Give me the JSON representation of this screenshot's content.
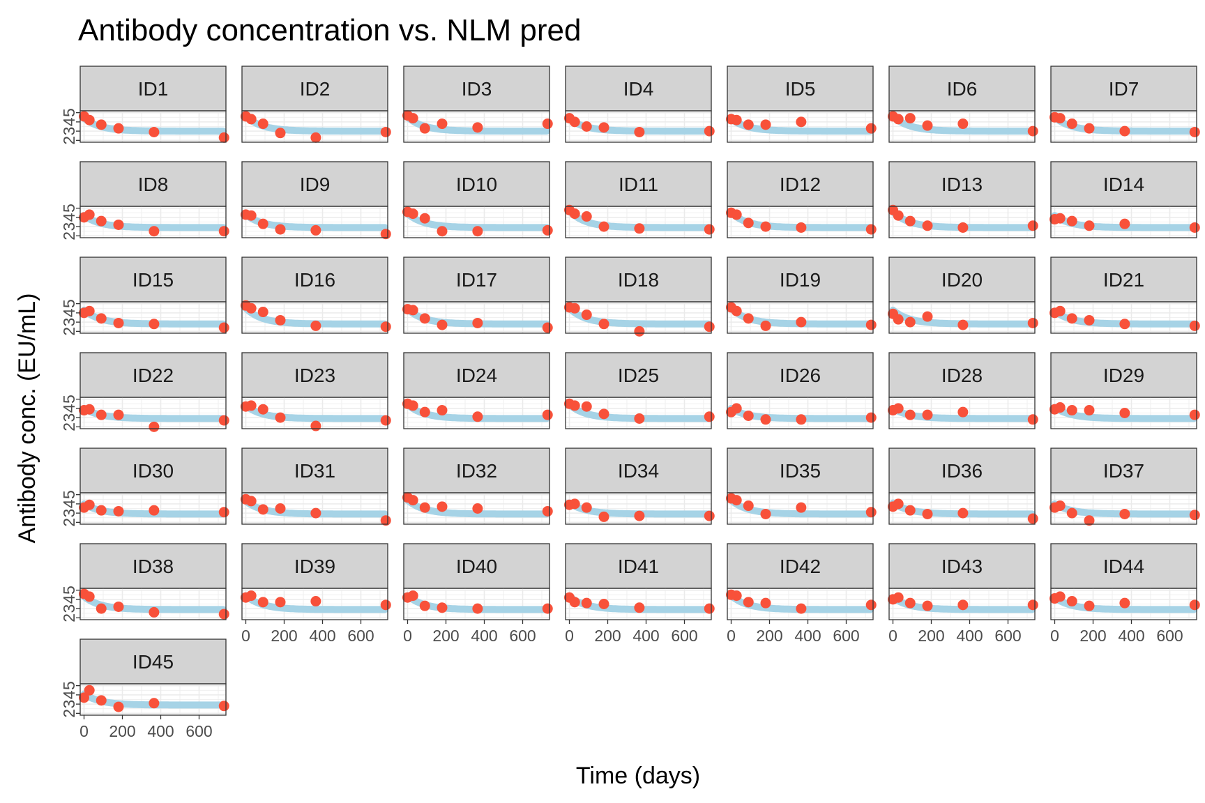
{
  "chart_data": {
    "type": "scatter",
    "title": "Antibody concentration vs. NLM pred",
    "xlabel": "Time (days)",
    "ylabel": "Antibody conc. (EU/mL)",
    "xlim": [
      -20,
      740
    ],
    "ylim": [
      1.8,
      5.2
    ],
    "xticks": [
      0,
      200,
      400,
      600
    ],
    "yticks": [
      2,
      3,
      4,
      5
    ],
    "grid": true,
    "legend": "none",
    "colors": {
      "observed": "#f8513a",
      "predicted": "#a6d3e6",
      "strip": "#d3d3d3"
    },
    "times": [
      0,
      28,
      90,
      180,
      365,
      730
    ],
    "panels": [
      {
        "id": "ID1",
        "obs": [
          4.6,
          4.2,
          3.7,
          3.3,
          2.9,
          2.3
        ],
        "pred": [
          4.4,
          3.0
        ]
      },
      {
        "id": "ID2",
        "obs": [
          4.6,
          4.3,
          3.8,
          2.8,
          2.3,
          2.9
        ],
        "pred": [
          4.6,
          3.0
        ]
      },
      {
        "id": "ID3",
        "obs": [
          4.7,
          4.4,
          3.3,
          3.8,
          3.4,
          3.8
        ],
        "pred": [
          4.5,
          3.0
        ]
      },
      {
        "id": "ID4",
        "obs": [
          4.4,
          4.0,
          3.5,
          3.4,
          2.9,
          3.0
        ],
        "pred": [
          4.3,
          3.0
        ]
      },
      {
        "id": "ID5",
        "obs": [
          4.3,
          4.2,
          3.7,
          3.7,
          4.0,
          3.3
        ],
        "pred": [
          4.3,
          3.0
        ]
      },
      {
        "id": "ID6",
        "obs": [
          4.6,
          4.3,
          4.4,
          3.6,
          3.8,
          3.0
        ],
        "pred": [
          4.6,
          3.0
        ]
      },
      {
        "id": "ID7",
        "obs": [
          4.5,
          4.4,
          3.8,
          3.3,
          3.0,
          2.9
        ],
        "pred": [
          4.5,
          3.0
        ]
      },
      {
        "id": "ID8",
        "obs": [
          4.0,
          4.3,
          3.6,
          3.2,
          2.5,
          2.5
        ],
        "pred": [
          4.2,
          2.9
        ]
      },
      {
        "id": "ID9",
        "obs": [
          4.3,
          4.2,
          3.3,
          2.7,
          2.6,
          2.2
        ],
        "pred": [
          4.3,
          2.9
        ]
      },
      {
        "id": "ID10",
        "obs": [
          4.6,
          4.4,
          3.9,
          2.5,
          2.5,
          2.6
        ],
        "pred": [
          4.4,
          2.9
        ]
      },
      {
        "id": "ID11",
        "obs": [
          4.8,
          4.4,
          4.1,
          3.0,
          2.8,
          2.7
        ],
        "pred": [
          4.7,
          2.9
        ]
      },
      {
        "id": "ID12",
        "obs": [
          4.5,
          4.3,
          3.4,
          3.0,
          2.9,
          2.7
        ],
        "pred": [
          4.5,
          2.9
        ]
      },
      {
        "id": "ID13",
        "obs": [
          4.8,
          4.2,
          3.6,
          3.1,
          2.9,
          3.1
        ],
        "pred": [
          4.6,
          2.9
        ]
      },
      {
        "id": "ID14",
        "obs": [
          3.8,
          3.9,
          3.6,
          3.1,
          3.3,
          2.9
        ],
        "pred": [
          4.2,
          2.9
        ]
      },
      {
        "id": "ID15",
        "obs": [
          4.0,
          4.2,
          3.4,
          2.9,
          2.8,
          2.4
        ],
        "pred": [
          4.3,
          2.8
        ]
      },
      {
        "id": "ID16",
        "obs": [
          4.8,
          4.5,
          4.1,
          3.2,
          2.6,
          2.5
        ],
        "pred": [
          4.5,
          2.8
        ]
      },
      {
        "id": "ID17",
        "obs": [
          4.4,
          4.3,
          3.4,
          2.7,
          2.9,
          2.4
        ],
        "pred": [
          4.4,
          2.8
        ]
      },
      {
        "id": "ID18",
        "obs": [
          4.6,
          4.5,
          3.8,
          2.8,
          2.0,
          2.5
        ],
        "pred": [
          4.5,
          2.8
        ]
      },
      {
        "id": "ID19",
        "obs": [
          4.6,
          4.2,
          3.4,
          2.6,
          3.0,
          2.7
        ],
        "pred": [
          4.5,
          2.8
        ]
      },
      {
        "id": "ID20",
        "obs": [
          3.9,
          3.3,
          3.0,
          3.6,
          2.7,
          2.9
        ],
        "pred": [
          4.3,
          2.8
        ]
      },
      {
        "id": "ID21",
        "obs": [
          4.0,
          4.2,
          3.4,
          3.2,
          2.8,
          2.6
        ],
        "pred": [
          4.2,
          2.8
        ]
      },
      {
        "id": "ID22",
        "obs": [
          3.8,
          3.9,
          3.3,
          3.3,
          2.0,
          2.7
        ],
        "pred": [
          4.0,
          2.9
        ]
      },
      {
        "id": "ID23",
        "obs": [
          4.2,
          4.3,
          3.9,
          3.0,
          2.1,
          2.7
        ],
        "pred": [
          4.3,
          2.9
        ]
      },
      {
        "id": "ID24",
        "obs": [
          4.5,
          4.3,
          3.6,
          3.8,
          3.1,
          3.3
        ],
        "pred": [
          4.4,
          2.9
        ]
      },
      {
        "id": "ID25",
        "obs": [
          4.5,
          4.3,
          4.2,
          3.4,
          2.9,
          3.1
        ],
        "pred": [
          4.4,
          2.9
        ]
      },
      {
        "id": "ID26",
        "obs": [
          3.6,
          4.0,
          3.2,
          2.8,
          2.8,
          3.0
        ],
        "pred": [
          4.0,
          2.9
        ]
      },
      {
        "id": "ID28",
        "obs": [
          3.8,
          4.0,
          3.3,
          3.3,
          3.6,
          2.8
        ],
        "pred": [
          4.0,
          2.9
        ]
      },
      {
        "id": "ID29",
        "obs": [
          3.9,
          4.1,
          3.8,
          3.8,
          3.5,
          3.3
        ],
        "pred": [
          4.1,
          2.9
        ]
      },
      {
        "id": "ID30",
        "obs": [
          3.6,
          3.9,
          3.3,
          3.2,
          3.3,
          3.1
        ],
        "pred": [
          4.0,
          2.9
        ]
      },
      {
        "id": "ID31",
        "obs": [
          4.5,
          4.3,
          3.4,
          3.5,
          3.0,
          2.2
        ],
        "pred": [
          4.3,
          2.9
        ]
      },
      {
        "id": "ID32",
        "obs": [
          4.7,
          4.4,
          3.6,
          3.7,
          3.5,
          3.2
        ],
        "pred": [
          4.4,
          2.9
        ]
      },
      {
        "id": "ID34",
        "obs": [
          3.9,
          4.0,
          3.6,
          2.6,
          2.7,
          2.7
        ],
        "pred": [
          4.1,
          2.9
        ]
      },
      {
        "id": "ID35",
        "obs": [
          4.6,
          4.4,
          3.8,
          2.9,
          3.6,
          3.1
        ],
        "pred": [
          4.4,
          2.9
        ]
      },
      {
        "id": "ID36",
        "obs": [
          3.7,
          4.0,
          3.3,
          2.9,
          3.0,
          2.4
        ],
        "pred": [
          4.1,
          2.9
        ]
      },
      {
        "id": "ID37",
        "obs": [
          3.6,
          3.8,
          3.0,
          2.2,
          2.9,
          2.8
        ],
        "pred": [
          4.0,
          2.9
        ]
      },
      {
        "id": "ID38",
        "obs": [
          4.6,
          4.3,
          3.0,
          3.2,
          2.6,
          2.4
        ],
        "pred": [
          4.3,
          2.9
        ]
      },
      {
        "id": "ID39",
        "obs": [
          4.2,
          4.4,
          3.7,
          3.7,
          3.8,
          3.4
        ],
        "pred": [
          4.4,
          2.9
        ]
      },
      {
        "id": "ID40",
        "obs": [
          4.2,
          4.4,
          3.3,
          3.1,
          3.0,
          3.0
        ],
        "pred": [
          4.4,
          2.9
        ]
      },
      {
        "id": "ID41",
        "obs": [
          4.2,
          3.7,
          3.6,
          3.5,
          3.1,
          3.0
        ],
        "pred": [
          4.3,
          2.9
        ]
      },
      {
        "id": "ID42",
        "obs": [
          4.5,
          4.4,
          3.7,
          3.6,
          3.0,
          3.4
        ],
        "pred": [
          4.4,
          2.9
        ]
      },
      {
        "id": "ID43",
        "obs": [
          4.0,
          4.2,
          3.6,
          3.3,
          3.4,
          3.4
        ],
        "pred": [
          4.2,
          2.9
        ]
      },
      {
        "id": "ID44",
        "obs": [
          4.1,
          4.3,
          3.8,
          3.3,
          3.6,
          3.4
        ],
        "pred": [
          4.2,
          2.9
        ]
      },
      {
        "id": "ID45",
        "obs": [
          3.7,
          4.5,
          3.4,
          2.7,
          3.1,
          2.8
        ],
        "pred": [
          4.1,
          2.9
        ]
      }
    ]
  }
}
